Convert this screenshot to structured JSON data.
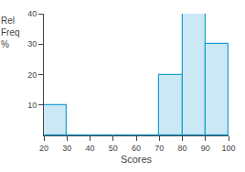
{
  "chart_data": {
    "type": "histogram",
    "bins": [
      20,
      30,
      40,
      50,
      60,
      70,
      80,
      90,
      100
    ],
    "values": [
      10,
      0,
      0,
      0,
      0,
      20,
      40,
      30
    ],
    "color": "#cce8f4",
    "xlabel": "Scores",
    "ylabel": "Rel\nFreq\n%",
    "xlim": [
      20,
      100
    ],
    "xticks": [
      20,
      30,
      40,
      50,
      60,
      70,
      80,
      90,
      100
    ],
    "ylim": [
      0,
      40
    ],
    "yticks": [
      10,
      20,
      30,
      40
    ],
    "grid": false
  }
}
